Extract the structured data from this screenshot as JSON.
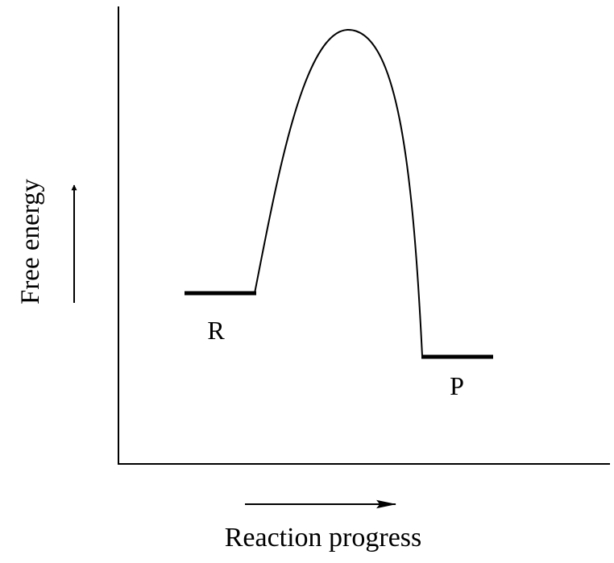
{
  "diagram": {
    "y_axis_label": "Free energy",
    "x_axis_label": "Reaction progress",
    "reactant_label": "R",
    "product_label": "P"
  },
  "colors": {
    "ink": "#000000",
    "background": "#ffffff"
  }
}
